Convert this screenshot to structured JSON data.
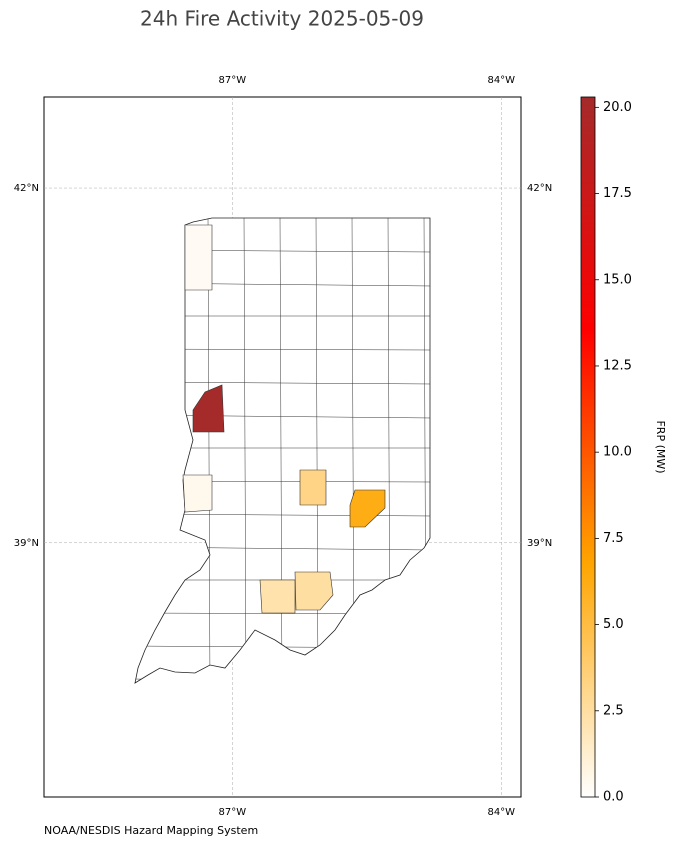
{
  "chart_data": {
    "type": "choropleth",
    "title": "24h Fire Activity 2025-05-09",
    "source": "NOAA/NESDIS Hazard Mapping System",
    "xlim": [
      -89.1,
      -83.78
    ],
    "ylim": [
      36.85,
      42.77
    ],
    "xticks": [
      {
        "value": -87,
        "label": "87°W"
      },
      {
        "value": -84,
        "label": "84°W"
      }
    ],
    "yticks": [
      {
        "value": 42,
        "label": "42°N"
      },
      {
        "value": 39,
        "label": "39°N"
      }
    ],
    "grid": true,
    "values": [
      0.3,
      20.3,
      0.5,
      3.2,
      6.2,
      2.2,
      2.5
    ],
    "colorbar": {
      "label": "FRP (MW)",
      "lim": [
        0,
        20.3
      ],
      "colors": [
        "#ffffff",
        "#ffa500",
        "#ff0000",
        "#a52a2a"
      ],
      "ticks": [
        {
          "value": 0,
          "label": "0.0"
        },
        2.5,
        {
          "value": 5,
          "label": "5.0"
        },
        7.5,
        {
          "value": 10,
          "label": "10.0"
        },
        12.5,
        {
          "value": 15,
          "label": "15.0"
        },
        17.5,
        {
          "value": 20,
          "label": "20.0"
        }
      ]
    }
  }
}
